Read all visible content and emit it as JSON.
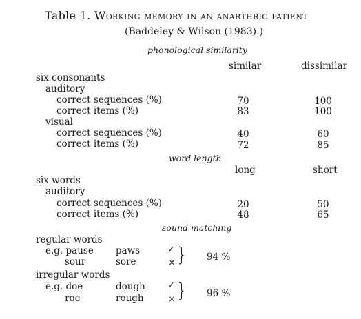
{
  "title": "Table 1. Working memory in an anarthric patient",
  "title_prefix": "Table 1.",
  "title_text": "Working memory in an anarthric patient",
  "subtitle": "(Baddeley & Wilson (1983).)",
  "sections": {
    "phonological_similarity": {
      "heading": "phonological similarity",
      "col_a": "similar",
      "col_b": "dissimilar",
      "group": "six consonants",
      "auditory": {
        "label": "auditory",
        "rows": [
          {
            "label": "correct sequences (%)",
            "a": "70",
            "b": "100"
          },
          {
            "label": "correct items (%)",
            "a": "83",
            "b": "100"
          }
        ]
      },
      "visual": {
        "label": "visual",
        "rows": [
          {
            "label": "correct sequences (%)",
            "a": "40",
            "b": "60"
          },
          {
            "label": "correct items (%)",
            "a": "72",
            "b": "85"
          }
        ]
      }
    },
    "word_length": {
      "heading": "word length",
      "col_a": "long",
      "col_b": "short",
      "group": "six words",
      "auditory": {
        "label": "auditory",
        "rows": [
          {
            "label": "correct sequences (%)",
            "a": "20",
            "b": "50"
          },
          {
            "label": "correct items (%)",
            "a": "48",
            "b": "65"
          }
        ]
      }
    },
    "sound_matching": {
      "heading": "sound matching",
      "regular": {
        "label": "regular words",
        "pairs": [
          {
            "word": "e.g. pause",
            "match": "paws",
            "mark": "✓"
          },
          {
            "word": "sour",
            "match": "sore",
            "mark": "×"
          }
        ],
        "score": "94 %"
      },
      "irregular": {
        "label": "irregular words",
        "pairs": [
          {
            "word": "e.g. doe",
            "match": "dough",
            "mark": "✓"
          },
          {
            "word": "roe",
            "match": "rough",
            "mark": "×"
          }
        ],
        "score": "96 %"
      }
    }
  },
  "brace": "}"
}
